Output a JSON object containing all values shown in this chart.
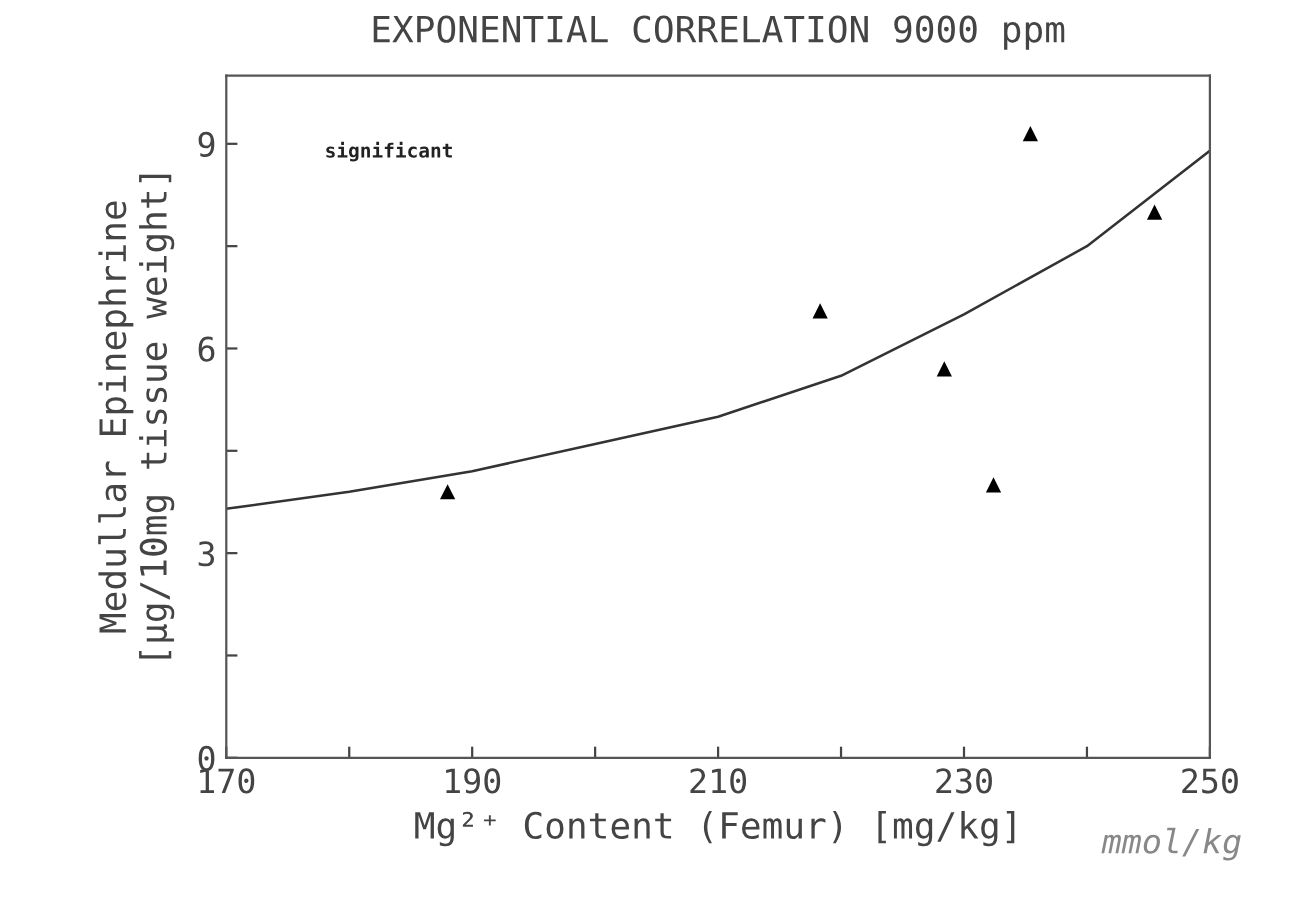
{
  "chart_data": {
    "type": "scatter",
    "title": "EXPONENTIAL CORRELATION 9000 ppm",
    "xlabel": "Mg²⁺ Content (Femur) [mg/kg]",
    "ylabel": "Medullar Epinephrine\n[µg/10mg tissue weight]",
    "annotations": [
      "significant",
      "mmol/kg"
    ],
    "series": [
      {
        "color": "#000000",
        "marker": "triangle",
        "x": [
          188.0,
          218.3,
          228.4,
          232.4,
          235.4,
          245.5
        ],
        "values": [
          3.9,
          6.55,
          5.7,
          4.0,
          9.15,
          8.0
        ]
      },
      {
        "type": "line",
        "color": "#333333",
        "marker": "none",
        "line_style": "solid",
        "x": [
          170,
          180,
          190,
          200,
          210,
          220,
          230,
          240,
          250
        ],
        "values": [
          3.65,
          3.9,
          4.2,
          4.6,
          5.0,
          5.6,
          6.5,
          7.5,
          8.9
        ]
      }
    ],
    "xlim": [
      170,
      250
    ],
    "xticks": [
      170,
      {
        "value": 180,
        "label": null
      },
      190,
      {
        "value": 200,
        "label": null
      },
      210,
      {
        "value": 220,
        "label": null
      },
      230,
      {
        "value": 240,
        "label": null
      },
      250
    ],
    "ylim": [
      0,
      10
    ],
    "yticks": [
      0,
      {
        "value": 1.5,
        "label": null
      },
      3,
      {
        "value": 4.5,
        "label": null
      },
      6,
      {
        "value": 7.5,
        "label": null
      },
      9
    ],
    "grid": false,
    "legend": false
  }
}
